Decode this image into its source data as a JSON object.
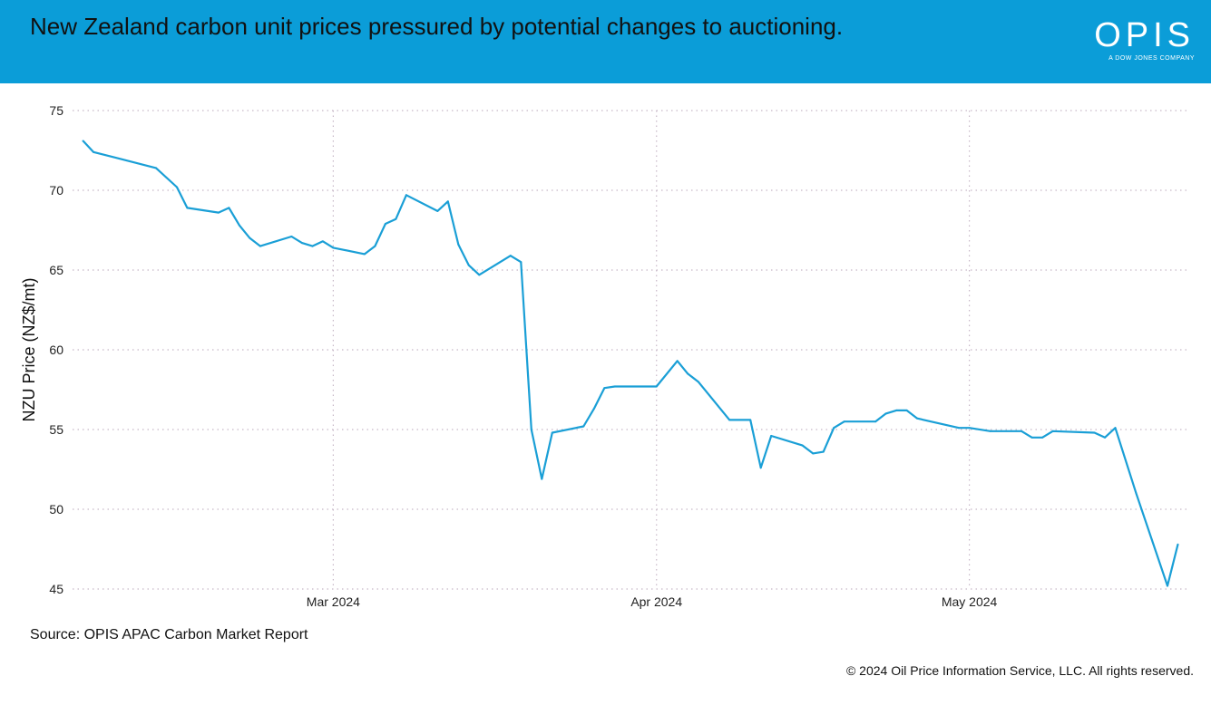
{
  "header": {
    "title": "New Zealand carbon unit prices pressured by potential changes to auctioning.",
    "logo_text": "OPIS",
    "logo_subtext": "A DOW JONES COMPANY",
    "background_color": "#0b9dd8"
  },
  "footer": {
    "source": "Source: OPIS APAC Carbon Market Report",
    "copyright": "© 2024 Oil Price Information Service, LLC. All rights reserved."
  },
  "chart_data": {
    "type": "line",
    "title": "",
    "xlabel": "",
    "ylabel": "NZU Price (NZ$/mt)",
    "ylim": [
      45,
      75
    ],
    "yticks": [
      "45",
      "50",
      "55",
      "60",
      "65",
      "70",
      "75"
    ],
    "xticks": [
      {
        "date": "2024-03-01",
        "label": "Mar 2024"
      },
      {
        "date": "2024-04-01",
        "label": "Apr 2024"
      },
      {
        "date": "2024-05-01",
        "label": "May 2024"
      }
    ],
    "xlim": [
      "2024-02-05",
      "2024-05-22"
    ],
    "grid": true,
    "line_color": "#1a9fd6",
    "series": [
      {
        "x": [
          "2024-02-06",
          "2024-02-07",
          "2024-02-13",
          "2024-02-15",
          "2024-02-16",
          "2024-02-19",
          "2024-02-20",
          "2024-02-21",
          "2024-02-22",
          "2024-02-23",
          "2024-02-26",
          "2024-02-27",
          "2024-02-28",
          "2024-02-29",
          "2024-03-01",
          "2024-03-04",
          "2024-03-05",
          "2024-03-06",
          "2024-03-07",
          "2024-03-08",
          "2024-03-11",
          "2024-03-12",
          "2024-03-13",
          "2024-03-14",
          "2024-03-15",
          "2024-03-18",
          "2024-03-19",
          "2024-03-20",
          "2024-03-21",
          "2024-03-22",
          "2024-03-25",
          "2024-03-26",
          "2024-03-27",
          "2024-03-28",
          "2024-04-01",
          "2024-04-03",
          "2024-04-04",
          "2024-04-05",
          "2024-04-08",
          "2024-04-10",
          "2024-04-11",
          "2024-04-12",
          "2024-04-15",
          "2024-04-16",
          "2024-04-17",
          "2024-04-18",
          "2024-04-19",
          "2024-04-22",
          "2024-04-23",
          "2024-04-24",
          "2024-04-25",
          "2024-04-26",
          "2024-04-30",
          "2024-05-01",
          "2024-05-03",
          "2024-05-06",
          "2024-05-07",
          "2024-05-08",
          "2024-05-09",
          "2024-05-13",
          "2024-05-14",
          "2024-05-15",
          "2024-05-17",
          "2024-05-20",
          "2024-05-21"
        ],
        "values": [
          73.1,
          72.4,
          71.4,
          70.2,
          68.9,
          68.6,
          68.9,
          67.8,
          67.0,
          66.5,
          67.1,
          66.7,
          66.5,
          66.8,
          66.4,
          66.0,
          66.5,
          67.9,
          68.2,
          69.7,
          68.7,
          69.3,
          66.6,
          65.3,
          64.7,
          65.9,
          65.5,
          55.0,
          51.9,
          54.8,
          55.2,
          56.3,
          57.6,
          57.7,
          57.7,
          59.3,
          58.5,
          58.0,
          55.6,
          55.6,
          52.6,
          54.6,
          54.0,
          53.5,
          53.6,
          55.1,
          55.5,
          55.5,
          56.0,
          56.2,
          56.2,
          55.7,
          55.1,
          55.1,
          54.9,
          54.9,
          54.5,
          54.5,
          54.9,
          54.8,
          54.5,
          55.1,
          51.0,
          45.2,
          47.8
        ]
      }
    ]
  }
}
